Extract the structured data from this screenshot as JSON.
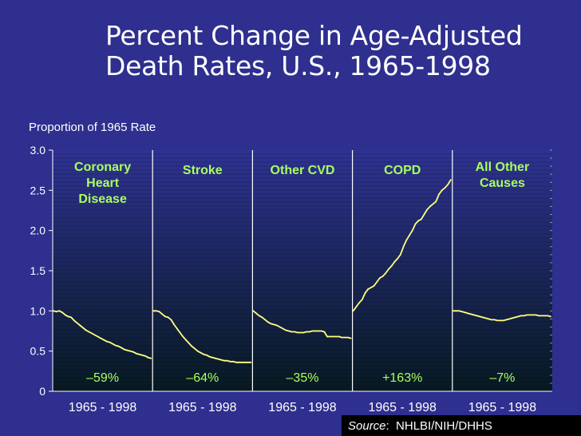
{
  "title_line1": "Percent Change in Age-Adjusted",
  "title_line2": "Death Rates, U.S., 1965-1998",
  "source_label": "Source",
  "source_text": "NHLBI/NIH/DHHS",
  "chart_data": {
    "type": "line",
    "ylabel": "Proportion of 1965 Rate",
    "ylim": [
      0,
      3.0
    ],
    "yticks": [
      "0",
      "0.5",
      "1.0",
      "1.5",
      "2.0",
      "2.5",
      "3.0"
    ],
    "panels": [
      {
        "name": [
          "Coronary",
          "Heart",
          "Disease"
        ],
        "xlabel": "1965 - 1998",
        "change": "–59%",
        "values": [
          1.0,
          0.99,
          1.0,
          0.98,
          0.95,
          0.93,
          0.92,
          0.88,
          0.85,
          0.82,
          0.79,
          0.76,
          0.74,
          0.72,
          0.7,
          0.68,
          0.66,
          0.64,
          0.62,
          0.61,
          0.59,
          0.57,
          0.56,
          0.54,
          0.52,
          0.51,
          0.5,
          0.49,
          0.47,
          0.46,
          0.45,
          0.44,
          0.42,
          0.41
        ]
      },
      {
        "name": [
          "Stroke"
        ],
        "xlabel": "1965 - 1998",
        "change": "–64%",
        "values": [
          1.0,
          1.0,
          0.99,
          0.96,
          0.93,
          0.92,
          0.89,
          0.83,
          0.78,
          0.73,
          0.68,
          0.64,
          0.6,
          0.56,
          0.53,
          0.5,
          0.48,
          0.46,
          0.45,
          0.43,
          0.42,
          0.41,
          0.4,
          0.39,
          0.38,
          0.38,
          0.37,
          0.37,
          0.36,
          0.36,
          0.36,
          0.36,
          0.36,
          0.36
        ]
      },
      {
        "name": [
          "Other CVD"
        ],
        "xlabel": "1965 - 1998",
        "change": "–35%",
        "values": [
          1.0,
          0.97,
          0.94,
          0.92,
          0.89,
          0.86,
          0.84,
          0.83,
          0.82,
          0.8,
          0.78,
          0.76,
          0.75,
          0.74,
          0.74,
          0.73,
          0.73,
          0.73,
          0.74,
          0.74,
          0.75,
          0.75,
          0.75,
          0.75,
          0.74,
          0.68,
          0.68,
          0.68,
          0.68,
          0.68,
          0.67,
          0.67,
          0.67,
          0.66
        ]
      },
      {
        "name": [
          "COPD"
        ],
        "xlabel": "1965 - 1998",
        "change": "+163%",
        "values": [
          1.0,
          1.05,
          1.1,
          1.14,
          1.22,
          1.27,
          1.29,
          1.31,
          1.36,
          1.41,
          1.43,
          1.47,
          1.52,
          1.56,
          1.61,
          1.65,
          1.7,
          1.8,
          1.88,
          1.94,
          2.0,
          2.08,
          2.12,
          2.14,
          2.2,
          2.26,
          2.3,
          2.33,
          2.36,
          2.45,
          2.5,
          2.53,
          2.57,
          2.63
        ]
      },
      {
        "name": [
          "All Other",
          "Causes"
        ],
        "xlabel": "1965 - 1998",
        "change": "–7%",
        "values": [
          1.0,
          1.0,
          1.0,
          0.99,
          0.98,
          0.97,
          0.96,
          0.95,
          0.94,
          0.93,
          0.92,
          0.91,
          0.9,
          0.89,
          0.89,
          0.88,
          0.88,
          0.88,
          0.89,
          0.9,
          0.91,
          0.92,
          0.93,
          0.94,
          0.94,
          0.95,
          0.95,
          0.95,
          0.95,
          0.94,
          0.94,
          0.94,
          0.94,
          0.93
        ]
      }
    ]
  },
  "colors": {
    "background": "#2e2f8e",
    "label_green": "#a8ff60",
    "line_yellow": "#ffff80",
    "plot_top": "#2f3292",
    "plot_bottom": "#071a22"
  }
}
